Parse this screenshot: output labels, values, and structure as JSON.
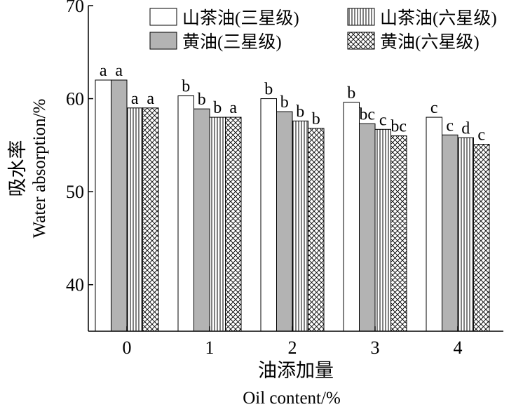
{
  "chart_data": {
    "type": "bar",
    "categories": [
      "0",
      "1",
      "2",
      "3",
      "4"
    ],
    "series": [
      {
        "name": "山茶油(三星级)",
        "pattern": "white",
        "values": [
          62.0,
          60.3,
          60.0,
          59.6,
          58.0
        ],
        "letters": [
          "a",
          "b",
          "b",
          "b",
          "c"
        ]
      },
      {
        "name": "黄油(三星级)",
        "pattern": "gray",
        "values": [
          62.0,
          58.9,
          58.6,
          57.3,
          56.1
        ],
        "letters": [
          "a",
          "b",
          "b",
          "bc",
          "c"
        ]
      },
      {
        "name": "山茶油(六星级)",
        "pattern": "vertical-stripes",
        "values": [
          59.0,
          58.0,
          57.6,
          56.7,
          55.8
        ],
        "letters": [
          "a",
          "b",
          "b",
          "c",
          "d"
        ]
      },
      {
        "name": "黄油(六星级)",
        "pattern": "crosshatch",
        "values": [
          59.0,
          58.0,
          56.8,
          56.0,
          55.1
        ],
        "letters": [
          "a",
          "a",
          "b",
          "bc",
          "c"
        ]
      }
    ],
    "ylabel_cn": "吸水率",
    "ylabel_en": "Water absorption/%",
    "xlabel_cn": "油添加量",
    "xlabel_en": "Oil content/%",
    "ylim": [
      35,
      70
    ],
    "yticks": [
      40,
      50,
      60,
      70
    ],
    "legend_position": "top-right",
    "grid": false,
    "colors": {
      "gray_fill": "#b3b3b3",
      "stroke": "#000000"
    }
  }
}
